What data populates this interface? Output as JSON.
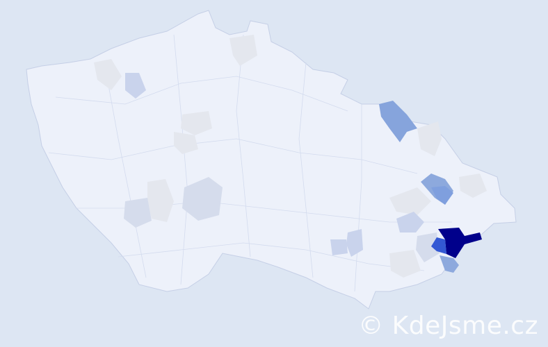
{
  "map": {
    "country_fill": "#edf1fa",
    "border_color": "#c5cfe6",
    "background": "#dde6f3",
    "regions_highlighted": [
      {
        "level": "highest",
        "color": "#00008b"
      },
      {
        "level": "high",
        "color": "#3358d4"
      },
      {
        "level": "medium",
        "color": "#7f9fde"
      },
      {
        "level": "medium",
        "color": "#86a4dc"
      },
      {
        "level": "medium-low",
        "color": "#8da9dd"
      },
      {
        "level": "low",
        "color": "#c9d3ec"
      },
      {
        "level": "low",
        "color": "#d5dcec"
      },
      {
        "level": "minimal",
        "color": "#e4e7ee"
      }
    ]
  },
  "watermark": {
    "text": "© KdeJsme.cz"
  }
}
